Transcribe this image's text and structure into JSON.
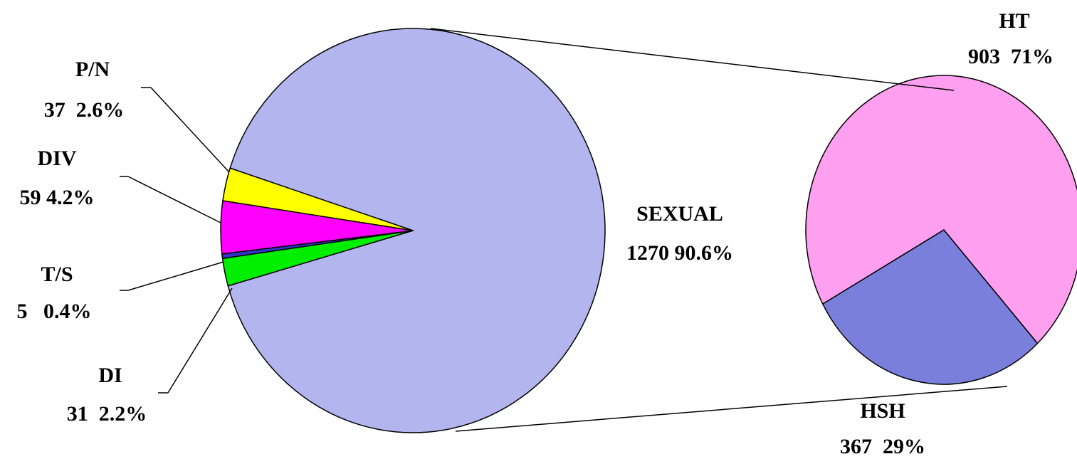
{
  "chart_data": [
    {
      "type": "pie",
      "categories": [
        "P/N",
        "DIV",
        "T/S",
        "DI",
        "SEXUAL"
      ],
      "values": [
        37,
        59,
        5,
        31,
        1270
      ],
      "value_labels": [
        "37  2.6%",
        "59 4.2%",
        "5   0.4%",
        "31  2.2%",
        "1270 90.6%"
      ],
      "colors": [
        "#ffff00",
        "#ff00ff",
        "#3333cc",
        "#00ee00",
        "#b3b6ee"
      ]
    },
    {
      "type": "pie",
      "categories": [
        "HT",
        "HSH"
      ],
      "values": [
        903,
        367
      ],
      "value_labels": [
        "903  71%",
        "367  29%"
      ],
      "colors": [
        "#ff9ff0",
        "#7a7fdc"
      ]
    }
  ]
}
